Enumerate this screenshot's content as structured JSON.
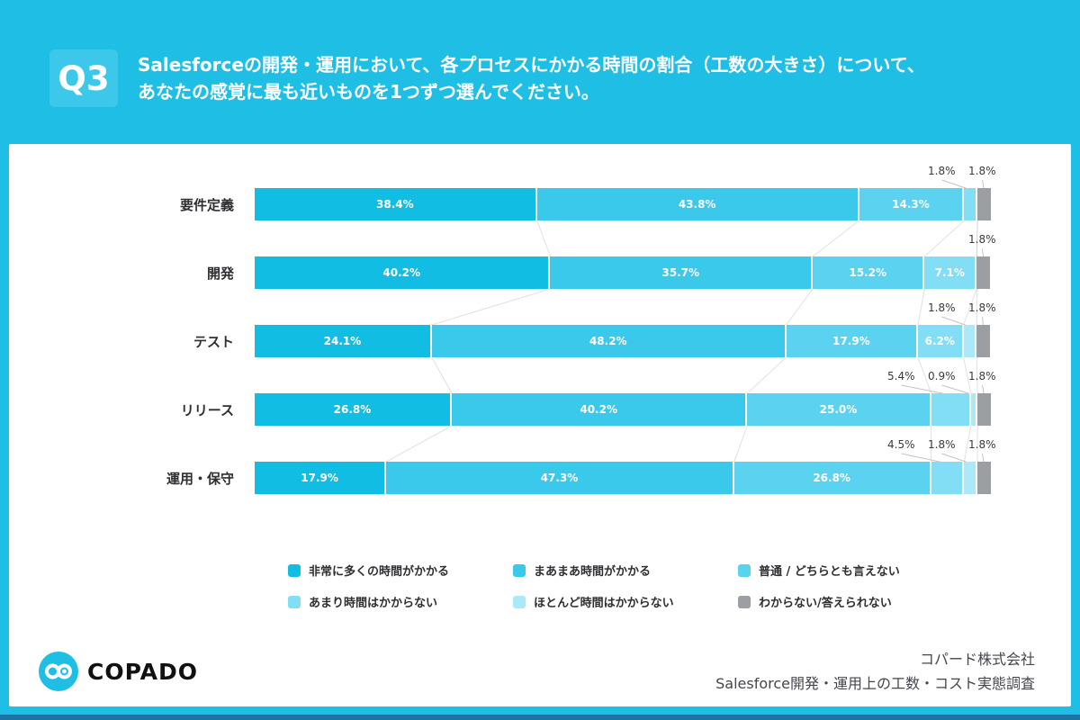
{
  "header": {
    "badge": "Q3",
    "question_line1": "Salesforceの開発・運用において、各プロセスにかかる時間の割合（工数の大きさ）について、",
    "question_line2": "あなたの感覚に最も近いものを1つずつ選んでください。"
  },
  "chart_data": {
    "type": "bar",
    "orientation": "horizontal",
    "stacked": true,
    "unit": "%",
    "xlim": [
      0,
      100
    ],
    "grid": false,
    "legend_position": "bottom",
    "categories": [
      "要件定義",
      "開発",
      "テスト",
      "リリース",
      "運用・保守"
    ],
    "series": [
      {
        "name": "非常に多くの時間がかかる",
        "color": "#12BDE3",
        "values": [
          38.4,
          40.2,
          24.1,
          26.8,
          17.9
        ]
      },
      {
        "name": "まあまあ時間がかかる",
        "color": "#3BC9EB",
        "values": [
          43.8,
          35.7,
          48.2,
          40.2,
          47.3
        ]
      },
      {
        "name": "普通 / どちらとも言えない",
        "color": "#5BD3F0",
        "values": [
          14.3,
          15.2,
          17.9,
          25.0,
          26.8
        ]
      },
      {
        "name": "あまり時間はかからない",
        "color": "#82DEF4",
        "values": [
          1.8,
          7.1,
          6.2,
          5.4,
          4.5
        ]
      },
      {
        "name": "ほとんど時間はかからない",
        "color": "#ACE9F8",
        "values": [
          0,
          0,
          1.8,
          0.9,
          1.8
        ]
      },
      {
        "name": "わからない/答えられない",
        "color": "#9B9FA3",
        "values": [
          1.8,
          1.8,
          1.8,
          1.8,
          1.8
        ]
      }
    ],
    "value_label_format": "{value}%"
  },
  "footer": {
    "logo_text": "COPADO",
    "company": "コパード株式会社",
    "survey": "Salesforce開発・運用上の工数・コスト実態調査"
  },
  "colors": {
    "page_background": "#1FBFE5",
    "badge_background": "#3CC8EA",
    "card_background": "#FFFFFF",
    "bottom_strip": "#1B74A4",
    "logo_circle": "#1FBFE5"
  }
}
